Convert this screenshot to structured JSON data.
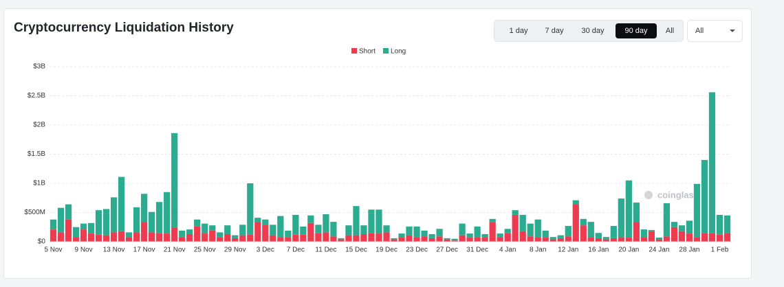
{
  "controls": {
    "time_ranges": [
      "1 day",
      "7 day",
      "30 day",
      "90 day",
      "All"
    ],
    "active_range": 3,
    "dropdown": "All"
  },
  "chart_data": {
    "type": "stacked_bar",
    "title": "Cryptocurrency Liquidation History",
    "watermark": "coinglass",
    "categories": [
      "5 Nov",
      null,
      null,
      null,
      "9 Nov",
      null,
      null,
      null,
      "13 Nov",
      null,
      null,
      null,
      "17 Nov",
      null,
      null,
      null,
      "21 Nov",
      null,
      null,
      null,
      "25 Nov",
      null,
      null,
      null,
      "29 Nov",
      null,
      null,
      null,
      "3 Dec",
      null,
      null,
      null,
      "7 Dec",
      null,
      null,
      null,
      "11 Dec",
      null,
      null,
      null,
      "15 Dec",
      null,
      null,
      null,
      "19 Dec",
      null,
      null,
      null,
      "23 Dec",
      null,
      null,
      null,
      "27 Dec",
      null,
      null,
      null,
      "31 Dec",
      null,
      null,
      null,
      "4 Jan",
      null,
      null,
      null,
      "8 Jan",
      null,
      null,
      null,
      "12 Jan",
      null,
      null,
      null,
      "16 Jan",
      null,
      null,
      null,
      "20 Jan",
      null,
      null,
      null,
      "24 Jan",
      null,
      null,
      null,
      "28 Jan",
      null,
      null,
      null,
      "1 Feb",
      null
    ],
    "series": [
      {
        "name": "Short",
        "color": "#ef3b4f",
        "values": [
          0.21,
          0.16,
          0.38,
          0.08,
          0.21,
          0.14,
          0.12,
          0.11,
          0.16,
          0.18,
          0.08,
          0.16,
          0.34,
          0.16,
          0.15,
          0.14,
          0.24,
          0.08,
          0.13,
          0.26,
          0.14,
          0.19,
          0.08,
          0.13,
          0.06,
          0.11,
          0.12,
          0.34,
          0.29,
          0.11,
          0.08,
          0.08,
          0.12,
          0.12,
          0.32,
          0.15,
          0.16,
          0.09,
          0.04,
          0.11,
          0.11,
          0.13,
          0.15,
          0.14,
          0.16,
          0.04,
          0.07,
          0.11,
          0.08,
          0.09,
          0.06,
          0.09,
          0.04,
          0.02,
          0.11,
          0.07,
          0.08,
          0.07,
          0.33,
          0.08,
          0.15,
          0.46,
          0.18,
          0.09,
          0.08,
          0.07,
          0.04,
          0.06,
          0.09,
          0.64,
          0.28,
          0.07,
          0.06,
          0.04,
          0.06,
          0.07,
          0.07,
          0.34,
          0.08,
          0.18,
          0.04,
          0.09,
          0.25,
          0.18,
          0.14,
          0.08,
          0.15,
          0.15,
          0.12,
          0.15
        ]
      },
      {
        "name": "Long",
        "color": "#2bac91",
        "values": [
          0.17,
          0.42,
          0.26,
          0.17,
          0.1,
          0.18,
          0.42,
          0.45,
          0.6,
          0.93,
          0.08,
          0.43,
          0.48,
          0.35,
          0.53,
          0.71,
          1.62,
          0.11,
          0.08,
          0.12,
          0.17,
          0.09,
          0.08,
          0.15,
          0.05,
          0.18,
          0.88,
          0.07,
          0.09,
          0.18,
          0.36,
          0.11,
          0.34,
          0.14,
          0.13,
          0.14,
          0.31,
          0.25,
          0.02,
          0.17,
          0.5,
          0.15,
          0.4,
          0.41,
          0.12,
          0.02,
          0.07,
          0.15,
          0.18,
          0.1,
          0.07,
          0.13,
          0.02,
          0.03,
          0.2,
          0.07,
          0.18,
          0.06,
          0.06,
          0.06,
          0.07,
          0.08,
          0.28,
          0.22,
          0.3,
          0.12,
          0.04,
          0.05,
          0.18,
          0.07,
          0.11,
          0.27,
          0.09,
          0.04,
          0.21,
          0.67,
          0.98,
          0.33,
          0.13,
          0.02,
          0.03,
          0.57,
          0.09,
          0.1,
          0.22,
          0.91,
          1.25,
          2.41,
          0.34,
          0.3
        ]
      }
    ],
    "ylim": [
      0,
      3
    ],
    "yticks": [
      {
        "value": 0,
        "label": "$0"
      },
      {
        "value": 0.5,
        "label": "$500M"
      },
      {
        "value": 1,
        "label": "$1B"
      },
      {
        "value": 1.5,
        "label": "$1.5B"
      },
      {
        "value": 2,
        "label": "$2B"
      },
      {
        "value": 2.5,
        "label": "$2.5B"
      },
      {
        "value": 3,
        "label": "$3B"
      }
    ],
    "grid": true,
    "legend": "top"
  }
}
